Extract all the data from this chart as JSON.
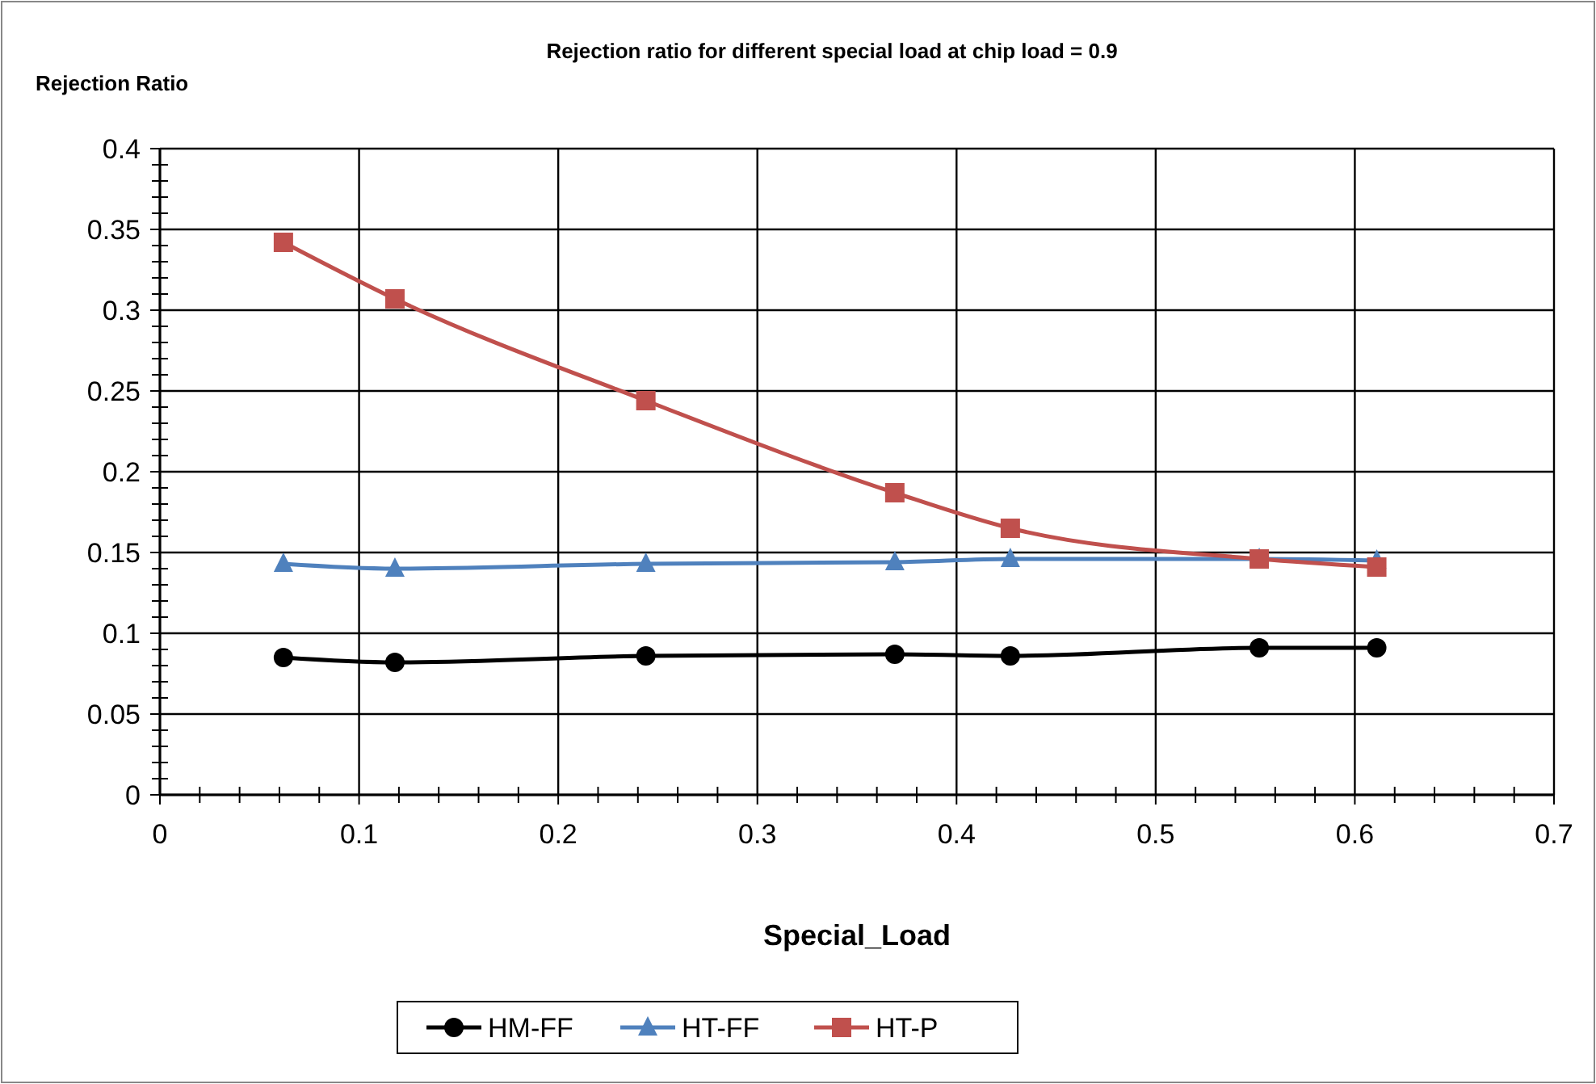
{
  "chart_data": {
    "type": "line",
    "title": "Rejection ratio for different special load at chip load = 0.9",
    "xlabel": "Special_Load",
    "ylabel": "Rejection Ratio",
    "x": [
      0.062,
      0.118,
      0.244,
      0.369,
      0.427,
      0.552,
      0.611
    ],
    "series": [
      {
        "name": "HM-FF",
        "color": "#000000",
        "marker": "circle",
        "values": [
          0.085,
          0.082,
          0.086,
          0.087,
          0.086,
          0.091,
          0.091
        ]
      },
      {
        "name": "HT-FF",
        "color": "#4f81bd",
        "marker": "triangle",
        "values": [
          0.143,
          0.14,
          0.143,
          0.144,
          0.146,
          0.146,
          0.145
        ]
      },
      {
        "name": "HT-P",
        "color": "#c0504d",
        "marker": "square",
        "values": [
          0.342,
          0.307,
          0.244,
          0.187,
          0.165,
          0.146,
          0.141
        ]
      }
    ],
    "xlim": [
      0,
      0.7
    ],
    "xticks": [
      0,
      0.1,
      0.2,
      0.3,
      0.4,
      0.5,
      0.6,
      0.7
    ],
    "ylim": [
      0,
      0.4
    ],
    "yticks": [
      0,
      0.05,
      0.1,
      0.15,
      0.2,
      0.25,
      0.3,
      0.35,
      0.4
    ],
    "grid": true,
    "legend": "bottom",
    "line_style": "solid"
  }
}
